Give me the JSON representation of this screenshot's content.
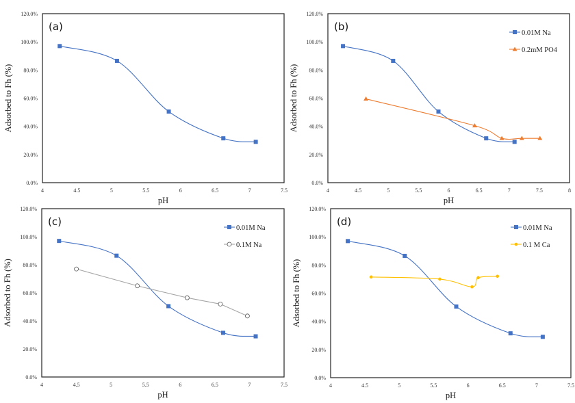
{
  "chart_data": [
    {
      "type": "line",
      "panel_label": "(a)",
      "xlabel": "pH",
      "ylabel": "Adsorbed to Fh (%)",
      "xlim": [
        4,
        7.5
      ],
      "ylim": [
        0,
        120
      ],
      "xticks": [
        "4",
        "4.5",
        "5",
        "5.5",
        "6",
        "6.5",
        "7",
        "7.5"
      ],
      "yticks": [
        "0.0%",
        "20.0%",
        "40.0%",
        "60.0%",
        "80.0%",
        "100.0%",
        "120.0%"
      ],
      "grid": false,
      "legend": "none",
      "series": [
        {
          "marker": "square",
          "color": "#4472C4",
          "smooth": true,
          "x": [
            4.25,
            5.08,
            5.83,
            6.62,
            7.09
          ],
          "y": [
            97,
            86.5,
            50.5,
            31.5,
            29
          ]
        }
      ]
    },
    {
      "type": "line",
      "panel_label": "(b)",
      "xlabel": "pH",
      "ylabel": "Adsorbed to Fh (%)",
      "xlim": [
        4,
        8
      ],
      "ylim": [
        0,
        120
      ],
      "xticks": [
        "4",
        "4.5",
        "5",
        "5.5",
        "6",
        "6.5",
        "7",
        "7.5",
        "8"
      ],
      "yticks": [
        "0.0%",
        "20.0%",
        "40.0%",
        "60.0%",
        "80.0%",
        "100.0%",
        "120.0%"
      ],
      "grid": false,
      "legend": "top-right",
      "series": [
        {
          "name": "0.01M Na",
          "marker": "square",
          "color": "#4472C4",
          "smooth": true,
          "x": [
            4.25,
            5.08,
            5.83,
            6.62,
            7.09
          ],
          "y": [
            97,
            86.5,
            50.5,
            31.5,
            29
          ]
        },
        {
          "name": "0.2mM PO4",
          "marker": "triangle",
          "color": "#ED7D31",
          "smooth": true,
          "x": [
            4.63,
            6.43,
            6.88,
            7.21,
            7.51
          ],
          "y": [
            59.5,
            40.5,
            31.5,
            31.5,
            31.5
          ]
        }
      ]
    },
    {
      "type": "line",
      "panel_label": "(c)",
      "xlabel": "pH",
      "ylabel": "Adsorbed to Fh (%)",
      "xlim": [
        4,
        7.5
      ],
      "ylim": [
        0,
        120
      ],
      "xticks": [
        "4",
        "4.5",
        "5",
        "5.5",
        "6",
        "6.5",
        "7",
        "7.5"
      ],
      "yticks": [
        "0.0%",
        "20.0%",
        "40.0%",
        "60.0%",
        "80.0%",
        "100.0%",
        "120.0%"
      ],
      "grid": false,
      "legend": "top-right",
      "series": [
        {
          "name": "0.01M Na",
          "marker": "square",
          "color": "#4472C4",
          "smooth": true,
          "x": [
            4.25,
            5.08,
            5.83,
            6.62,
            7.09
          ],
          "y": [
            97,
            86.5,
            50.5,
            31.5,
            29
          ]
        },
        {
          "name": "0.1M Na",
          "marker": "circle-open",
          "color": "#A5A5A5",
          "smooth": false,
          "x": [
            4.5,
            5.38,
            6.1,
            6.58,
            6.97
          ],
          "y": [
            77,
            65,
            56.5,
            52,
            43.5
          ]
        }
      ]
    },
    {
      "type": "line",
      "panel_label": "(d)",
      "xlabel": "pH",
      "ylabel": "Adsorbed to Fh (%)",
      "xlim": [
        4,
        7.5
      ],
      "ylim": [
        0,
        120
      ],
      "xticks": [
        "4",
        "4.5",
        "5",
        "5.5",
        "6",
        "6.5",
        "7",
        "7.5"
      ],
      "yticks": [
        "0.0%",
        "20.0%",
        "40.0%",
        "60.0%",
        "80.0%",
        "100.0%",
        "120.0%"
      ],
      "grid": false,
      "legend": "top-right",
      "series": [
        {
          "name": "0.01M Na",
          "marker": "square",
          "color": "#4472C4",
          "smooth": true,
          "x": [
            4.25,
            5.08,
            5.83,
            6.62,
            7.09
          ],
          "y": [
            97,
            86.5,
            50.5,
            31.5,
            29
          ]
        },
        {
          "name": "0.1 M Ca",
          "marker": "dot",
          "color": "#FFC000",
          "smooth": true,
          "x": [
            4.59,
            5.59,
            6.06,
            6.15,
            6.43
          ],
          "y": [
            71.5,
            70,
            64.5,
            71,
            72
          ]
        }
      ]
    }
  ]
}
